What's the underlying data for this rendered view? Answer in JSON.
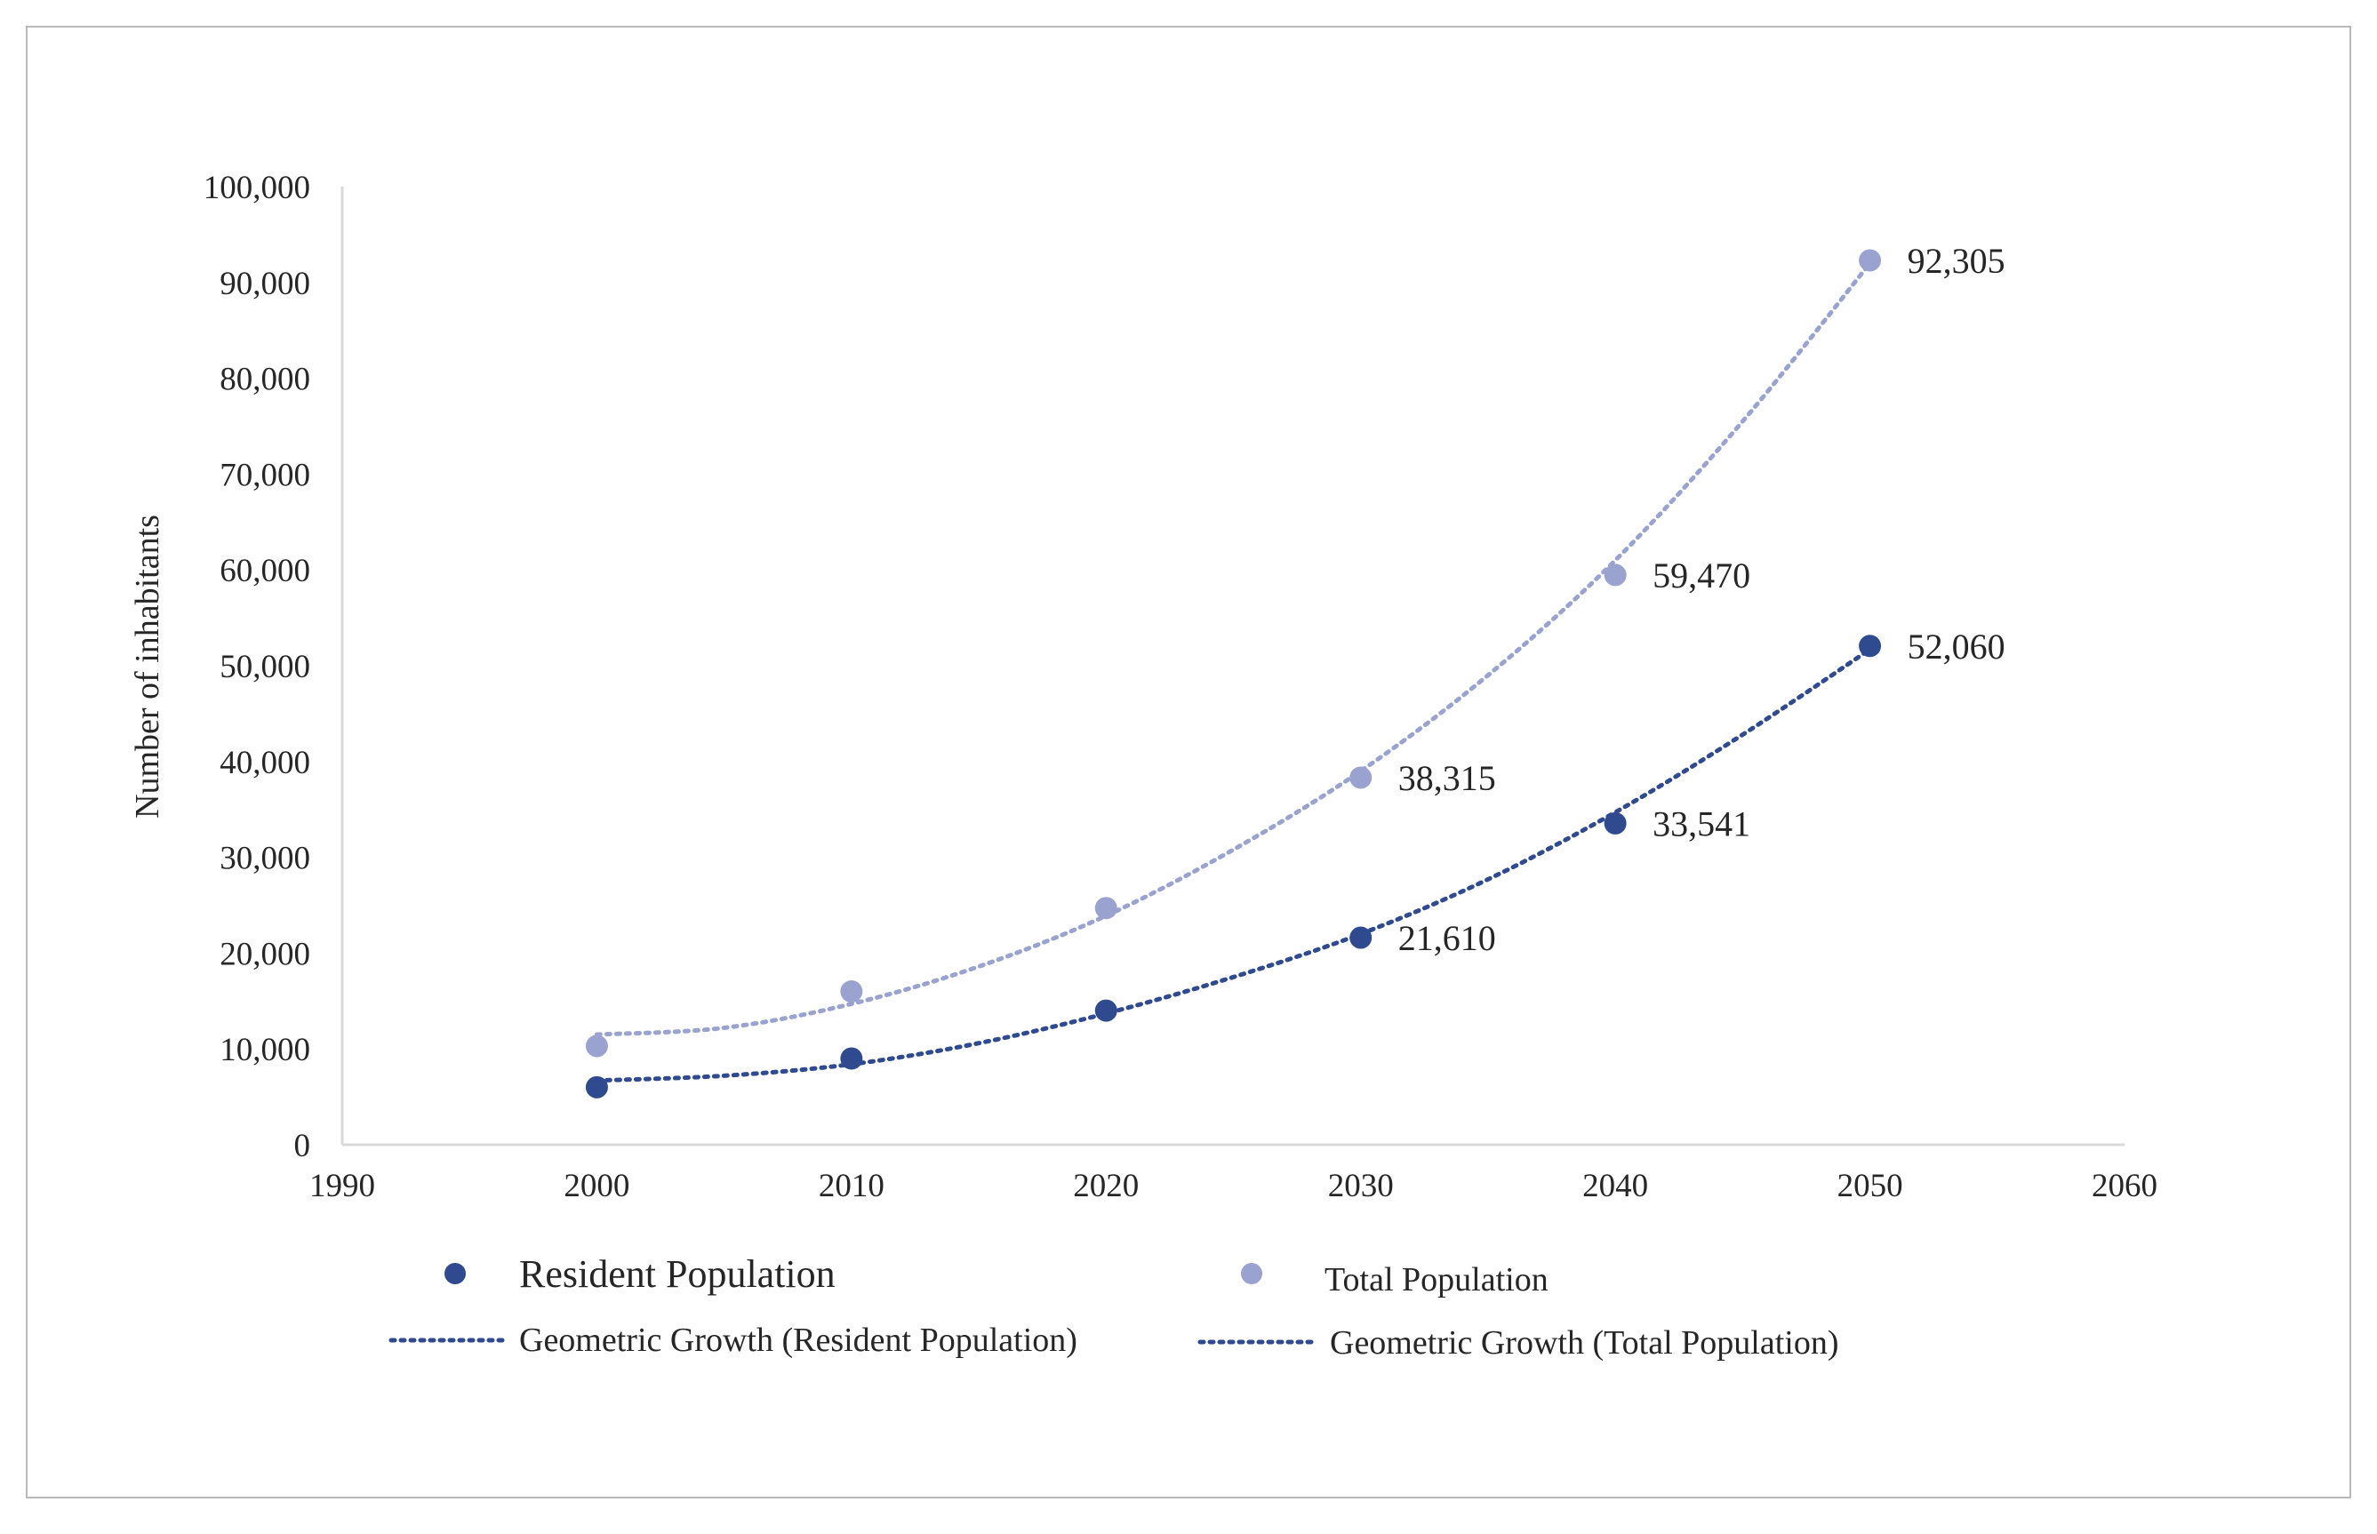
{
  "chart_data": {
    "type": "scatter",
    "title": "",
    "xlabel": "",
    "ylabel": "Number of inhabitants",
    "xlim": [
      1990,
      2060
    ],
    "ylim": [
      0,
      100000
    ],
    "x_ticks": [
      "1990",
      "2000",
      "2010",
      "2020",
      "2030",
      "2040",
      "2050",
      "2060"
    ],
    "y_ticks": [
      "0",
      "10,000",
      "20,000",
      "30,000",
      "40,000",
      "50,000",
      "60,000",
      "70,000",
      "80,000",
      "90,000",
      "100,000"
    ],
    "grid": false,
    "legend_position": "bottom",
    "colors": {
      "resident": "#2f4a8f",
      "total": "#9aa3cf",
      "axis": "#d9d9d9",
      "frame": "#b9b9b9"
    },
    "series": [
      {
        "name": "Resident Population",
        "x": [
          2000,
          2010,
          2020,
          2030,
          2040,
          2050
        ],
        "values": [
          6000,
          9000,
          14000,
          21610,
          33541,
          52060
        ],
        "labels": [
          "",
          "",
          "",
          "21,610",
          "33,541",
          "52,060"
        ]
      },
      {
        "name": "Total Population",
        "x": [
          2000,
          2010,
          2020,
          2030,
          2040,
          2050
        ],
        "values": [
          10300,
          16000,
          24700,
          38315,
          59470,
          92305
        ],
        "labels": [
          "",
          "",
          "",
          "38,315",
          "59,470",
          "92,305"
        ]
      }
    ],
    "trendlines": [
      {
        "name": "Geometric Growth (Resident Population)",
        "series": "Resident Population",
        "x": [
          2000,
          2005,
          2010,
          2015,
          2020,
          2025,
          2030,
          2035,
          2040,
          2045,
          2050
        ],
        "values": [
          6700,
          7200,
          8400,
          10600,
          13700,
          17500,
          22000,
          27700,
          34700,
          42800,
          51700
        ]
      },
      {
        "name": "Geometric Growth (Total Population)",
        "series": "Total Population",
        "x": [
          2000,
          2005,
          2010,
          2015,
          2020,
          2025,
          2030,
          2035,
          2040,
          2045,
          2050
        ],
        "values": [
          11500,
          12200,
          14700,
          18600,
          23900,
          30800,
          39000,
          49000,
          61000,
          75500,
          92000
        ]
      }
    ],
    "legend": [
      {
        "label": "Resident Population",
        "kind": "marker",
        "series": "Resident Population"
      },
      {
        "label": "Total Population",
        "kind": "marker",
        "series": "Total Population"
      },
      {
        "label": "Geometric Growth (Resident Population)",
        "kind": "dotted",
        "series": "Resident Population"
      },
      {
        "label": "Geometric Growth (Total Population)",
        "kind": "dotted",
        "series": "Resident Population"
      }
    ]
  }
}
